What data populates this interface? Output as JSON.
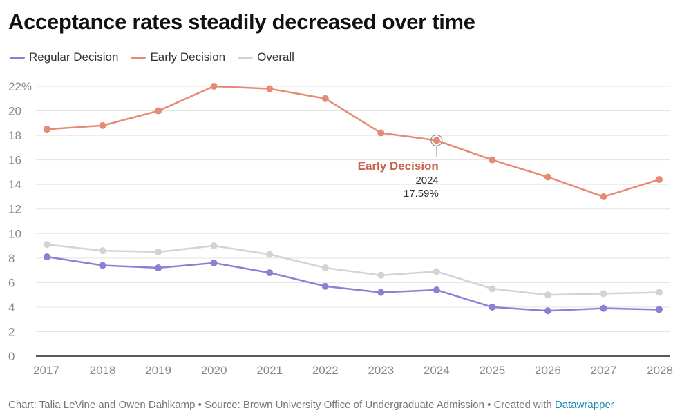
{
  "header": {
    "title": "Acceptance rates steadily decreased over time"
  },
  "legend": [
    {
      "name": "Regular Decision",
      "color": "#8e7fd6"
    },
    {
      "name": "Early Decision",
      "color": "#e58a74"
    },
    {
      "name": "Overall",
      "color": "#d3d3d3"
    }
  ],
  "footer": {
    "credit": "Chart: Talia LeVine and Owen Dahlkamp • Source: Brown University Office of Undergraduate Admission • Created with ",
    "brand": "Datawrapper"
  },
  "tooltip": {
    "series": "Early Decision",
    "year": "2024",
    "value": "17.59%"
  },
  "chart_data": {
    "type": "line",
    "title": "Acceptance rates steadily decreased over time",
    "xlabel": "",
    "ylabel": "",
    "ylim": [
      0,
      22
    ],
    "y_ticks": [
      "0",
      "2",
      "4",
      "6",
      "8",
      "10",
      "12",
      "14",
      "16",
      "18",
      "20",
      "22%"
    ],
    "y_tick_values": [
      0,
      2,
      4,
      6,
      8,
      10,
      12,
      14,
      16,
      18,
      20,
      22
    ],
    "x": [
      "2017",
      "2018",
      "2019",
      "2020",
      "2021",
      "2022",
      "2023",
      "2024",
      "2025",
      "2026",
      "2027",
      "2028"
    ],
    "series": [
      {
        "name": "Early Decision",
        "color": "#e58a74",
        "values": [
          18.5,
          18.8,
          20.0,
          22.0,
          21.8,
          21.0,
          18.2,
          17.59,
          16.0,
          14.6,
          13.0,
          14.4
        ]
      },
      {
        "name": "Overall",
        "color": "#d3d3d3",
        "values": [
          9.1,
          8.6,
          8.5,
          9.0,
          8.3,
          7.2,
          6.6,
          6.9,
          5.5,
          5.0,
          5.1,
          5.2
        ]
      },
      {
        "name": "Regular Decision",
        "color": "#8e7fd6",
        "values": [
          8.1,
          7.4,
          7.2,
          7.6,
          6.8,
          5.7,
          5.2,
          5.4,
          4.0,
          3.7,
          3.9,
          3.8
        ]
      }
    ]
  }
}
